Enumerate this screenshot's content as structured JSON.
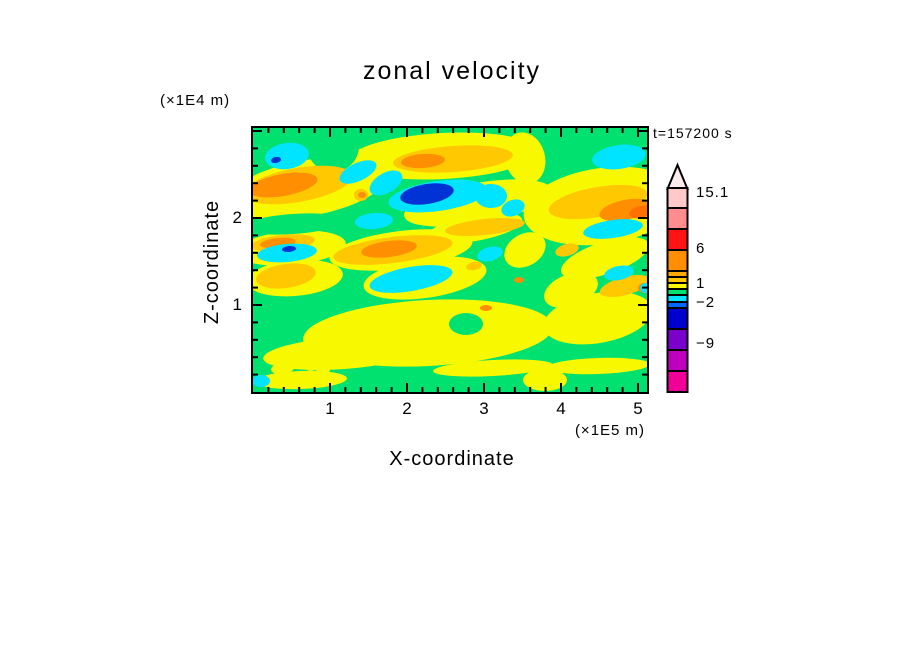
{
  "title": "zonal velocity",
  "timestamp": "t=157200 s",
  "axes": {
    "x_label": "X-coordinate",
    "x_unit": "(×1E5 m)",
    "z_label": "Z-coordinate",
    "z_unit": "(×1E4 m)",
    "x_ticks": [
      "1",
      "2",
      "3",
      "4",
      "5"
    ],
    "z_ticks": [
      "1",
      "2"
    ]
  },
  "colorbar": {
    "arrow_color": "#FFECEC",
    "labels": [
      {
        "text": "15.1",
        "y": 193
      },
      {
        "text": "6",
        "y": 249
      },
      {
        "text": "1",
        "y": 284
      },
      {
        "text": "−2",
        "y": 303
      },
      {
        "text": "−9",
        "y": 344
      }
    ],
    "bands": [
      {
        "color": "#FFC9C9",
        "h": 20
      },
      {
        "color": "#FF8D8D",
        "h": 21
      },
      {
        "color": "#FF1414",
        "h": 21
      },
      {
        "color": "#FF8E00",
        "h": 21
      },
      {
        "color": "#FFA800",
        "h": 6
      },
      {
        "color": "#FFC800",
        "h": 6
      },
      {
        "color": "#F8F800",
        "h": 6
      },
      {
        "color": "#00E170",
        "h": 6
      },
      {
        "color": "#00E4FF",
        "h": 7
      },
      {
        "color": "#0068FF",
        "h": 6
      },
      {
        "color": "#0000CF",
        "h": 21
      },
      {
        "color": "#7A00CC",
        "h": 21
      },
      {
        "color": "#BE00BE",
        "h": 21
      },
      {
        "color": "#F00096",
        "h": 21
      }
    ]
  },
  "chart_data": {
    "type": "filled_contour",
    "title": "zonal velocity",
    "xlabel": "X-coordinate (×1E5 m)",
    "ylabel": "Z-coordinate (×1E4 m)",
    "time_label": "t=157200 s",
    "x_range": [
      0,
      5.12
    ],
    "z_range": [
      0,
      3.03
    ],
    "x_major_ticks": [
      1,
      2,
      3,
      4,
      5
    ],
    "z_major_ticks": [
      1,
      2
    ],
    "minor_tick_step": 0.2,
    "colorbar_labeled_levels": [
      15.1,
      6,
      1,
      -2,
      -9
    ],
    "legend_position": "right",
    "palette": {
      "g": "#00E170",
      "y": "#F8F800",
      "G": "#FFC800",
      "o": "#FF8E00",
      "d": "#FF7000",
      "c": "#00E4FF",
      "n": "#0033D6"
    },
    "field_shapes": [
      [
        "y",
        190,
        28,
        95,
        23,
        -3
      ],
      [
        "y",
        55,
        60,
        80,
        28,
        -10
      ],
      [
        "y",
        272,
        30,
        20,
        26,
        -15
      ],
      [
        "y",
        350,
        78,
        80,
        38,
        -8
      ],
      [
        "y",
        225,
        75,
        75,
        20,
        -10
      ],
      [
        "y",
        38,
        120,
        55,
        17,
        -5
      ],
      [
        "y",
        222,
        100,
        48,
        13,
        -10
      ],
      [
        "y",
        148,
        122,
        72,
        19,
        -7
      ],
      [
        "y",
        352,
        130,
        46,
        16,
        -18
      ],
      [
        "y",
        272,
        122,
        22,
        16,
        -30
      ],
      [
        "y",
        42,
        150,
        48,
        18,
        -5
      ],
      [
        "y",
        172,
        150,
        62,
        20,
        -8
      ],
      [
        "y",
        318,
        162,
        28,
        16,
        -20
      ],
      [
        "y",
        345,
        190,
        55,
        25,
        -10
      ],
      [
        "y",
        175,
        205,
        125,
        33,
        -3
      ],
      [
        "y",
        90,
        225,
        80,
        16,
        -4
      ],
      [
        "y",
        48,
        252,
        46,
        9,
        -2
      ],
      [
        "y",
        30,
        240,
        12,
        6,
        -10
      ],
      [
        "y",
        62,
        237,
        10,
        5,
        -20
      ],
      [
        "y",
        18,
        232,
        6,
        3,
        0
      ],
      [
        "y",
        70,
        242,
        7,
        4,
        0
      ],
      [
        "y",
        240,
        240,
        60,
        8,
        -3
      ],
      [
        "y",
        345,
        238,
        52,
        8,
        -2
      ],
      [
        "y",
        292,
        252,
        22,
        11,
        0
      ],
      [
        "y",
        284,
        40,
        4,
        3,
        0
      ],
      [
        "g",
        80,
        18,
        26,
        26,
        0
      ],
      [
        "g",
        40,
        96,
        52,
        10,
        -4
      ],
      [
        "g",
        213,
        196,
        17,
        11,
        0
      ],
      [
        "G",
        200,
        31,
        60,
        13,
        -4
      ],
      [
        "G",
        45,
        57,
        55,
        17,
        -10
      ],
      [
        "G",
        345,
        74,
        50,
        15,
        -10
      ],
      [
        "G",
        232,
        99,
        40,
        8,
        -6
      ],
      [
        "G",
        140,
        122,
        60,
        13,
        -7
      ],
      [
        "G",
        30,
        115,
        32,
        8,
        -6
      ],
      [
        "G",
        33,
        148,
        30,
        12,
        -8
      ],
      [
        "G",
        108,
        67,
        7,
        6,
        0
      ],
      [
        "G",
        372,
        158,
        26,
        9,
        -15
      ],
      [
        "G",
        314,
        122,
        12,
        6,
        -15
      ],
      [
        "G",
        221,
        138,
        8,
        4,
        -10
      ],
      [
        "o",
        170,
        33,
        22,
        7,
        -4
      ],
      [
        "o",
        30,
        57,
        35,
        11,
        -10
      ],
      [
        "o",
        372,
        82,
        26,
        10,
        -12
      ],
      [
        "o",
        136,
        121,
        28,
        8,
        -7
      ],
      [
        "o",
        25,
        115,
        18,
        5,
        -6
      ],
      [
        "o",
        109,
        67,
        4,
        3,
        0
      ],
      [
        "o",
        266,
        152,
        5,
        3,
        0
      ],
      [
        "o",
        233,
        180,
        6,
        3,
        0
      ],
      [
        "o",
        391,
        160,
        6,
        5,
        0
      ],
      [
        "d",
        388,
        84,
        12,
        6,
        -12
      ],
      [
        "c",
        34,
        28,
        22,
        13,
        -8
      ],
      [
        "c",
        105,
        44,
        20,
        9,
        -25
      ],
      [
        "c",
        133,
        55,
        18,
        10,
        -30
      ],
      [
        "c",
        185,
        68,
        50,
        15,
        -8
      ],
      [
        "c",
        238,
        68,
        16,
        12,
        0
      ],
      [
        "c",
        260,
        80,
        12,
        8,
        -20
      ],
      [
        "c",
        121,
        93,
        19,
        8,
        -5
      ],
      [
        "c",
        34,
        125,
        30,
        9,
        -5
      ],
      [
        "c",
        158,
        151,
        42,
        12,
        -10
      ],
      [
        "c",
        237,
        126,
        13,
        7,
        -15
      ],
      [
        "c",
        360,
        101,
        30,
        9,
        -8
      ],
      [
        "c",
        366,
        29,
        27,
        12,
        -8
      ],
      [
        "c",
        366,
        145,
        15,
        7,
        -12
      ],
      [
        "c",
        393,
        160,
        6,
        5,
        0
      ],
      [
        "c",
        8,
        253,
        9,
        6,
        0
      ],
      [
        "n",
        23,
        32,
        5,
        3,
        -10
      ],
      [
        "n",
        174,
        66,
        27,
        10,
        -9
      ],
      [
        "n",
        36,
        121,
        7,
        3,
        -5
      ]
    ]
  }
}
